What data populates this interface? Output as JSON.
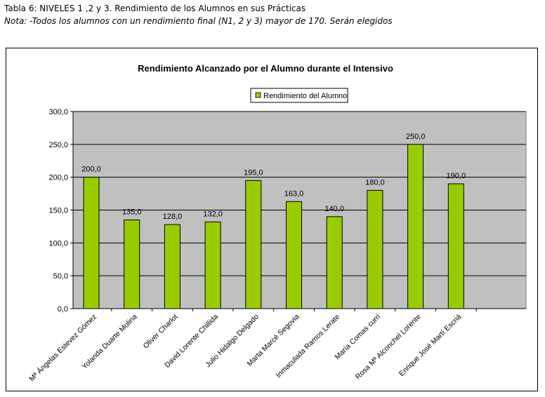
{
  "caption": {
    "line1": "Tabla 6: NIVELES 1 ,2 y 3. Rendimiento de los Alumnos en sus Prácticas",
    "line2": "Nota: -Todos los alumnos con un rendimiento final (N1, 2 y 3) mayor de 170. Serán elegidos"
  },
  "colors": {
    "bar": "#99cc00",
    "plot_bg": "#c0c0c0",
    "grid": "#000000"
  },
  "chart_data": {
    "type": "bar",
    "title": "Rendimiento Alcanzado por el Alumno durante el Intensivo",
    "legend": {
      "entries": [
        "Rendimiento del Alumno"
      ],
      "position": "top"
    },
    "ylim": [
      0,
      300
    ],
    "yticks": [
      "0,0",
      "50,0",
      "100,0",
      "150,0",
      "200,0",
      "250,0",
      "300,0"
    ],
    "grid": true,
    "categories": [
      "Mª Ángelas Estevez Gómez",
      "Yolanda Duarte Molina",
      "Oliver Charlot",
      "David Lorente Chillida",
      "Julio Hidalgo Delgado",
      "Marta Marcé Segovia",
      "Inmaculada Ramos Lerate",
      "María Comas curri",
      "Rosa Mª Alconchel Lorente",
      "Enrique José Martí Escriá"
    ],
    "series": [
      {
        "name": "Rendimiento del Alumno",
        "values": [
          200,
          135,
          128,
          132,
          195,
          163,
          140,
          180,
          250,
          190
        ],
        "labels": [
          "200,0",
          "135,0",
          "128,0",
          "132,0",
          "195,0",
          "163,0",
          "140,0",
          "180,0",
          "250,0",
          "190,0"
        ]
      }
    ]
  }
}
